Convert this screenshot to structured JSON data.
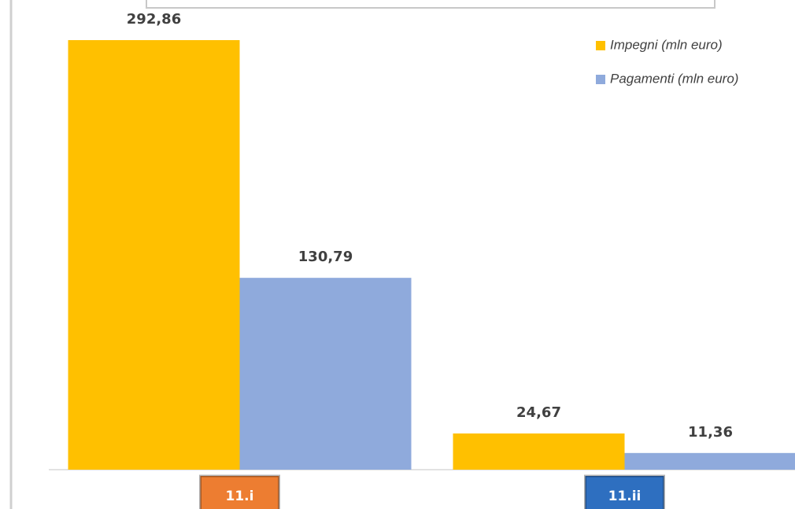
{
  "chart_data": {
    "type": "bar",
    "categories": [
      "11.i",
      "11.ii"
    ],
    "category_colors": [
      "#ed7d31",
      "#2e6fc0"
    ],
    "series": [
      {
        "name": "Impegni (mln euro)",
        "color": "#ffc000",
        "values": [
          292.86,
          24.67
        ],
        "value_labels": [
          "292,86",
          "24,67"
        ]
      },
      {
        "name": "Pagamenti (mln euro)",
        "color": "#8faadc",
        "values": [
          130.79,
          11.36
        ],
        "value_labels": [
          "130,79",
          "11,36"
        ]
      }
    ]
  }
}
